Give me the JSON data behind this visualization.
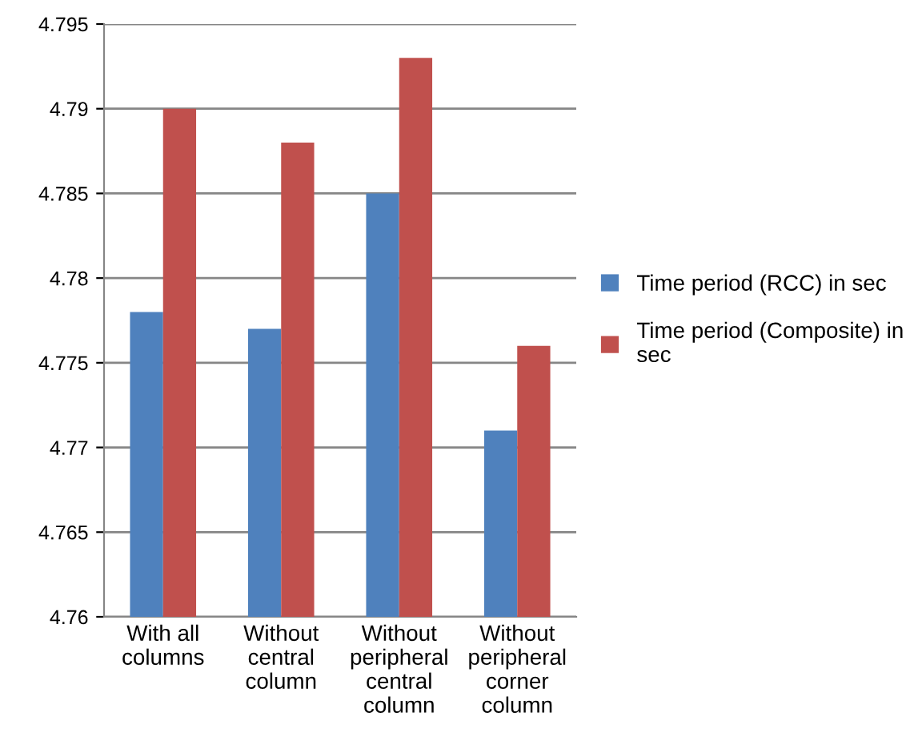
{
  "chart_data": {
    "type": "bar",
    "categories": [
      "With all columns",
      "Without central column",
      "Without peripheral central column",
      "Without peripheral corner column"
    ],
    "series": [
      {
        "name": "Time period (RCC) in sec",
        "color": "#4f81bd",
        "values": [
          4.778,
          4.777,
          4.785,
          4.771
        ]
      },
      {
        "name": "Time period (Composite) in sec",
        "color": "#c0504d",
        "values": [
          4.79,
          4.788,
          4.793,
          4.776
        ]
      }
    ],
    "ylim": [
      4.76,
      4.795
    ],
    "yticks": [
      4.76,
      4.765,
      4.77,
      4.775,
      4.78,
      4.785,
      4.79,
      4.795
    ],
    "grid": "y",
    "legend": "right"
  }
}
